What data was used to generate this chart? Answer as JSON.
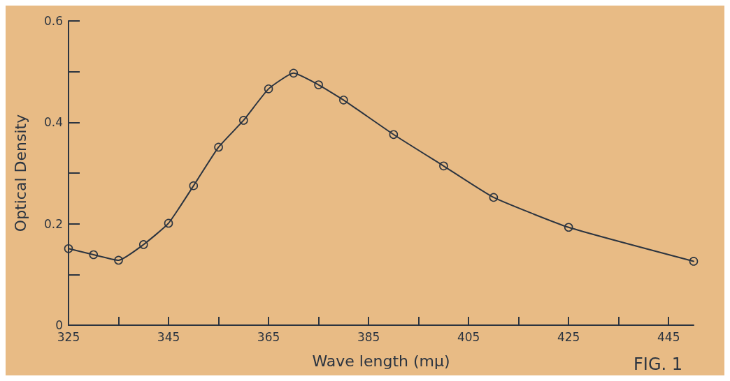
{
  "chart_data": {
    "type": "line",
    "xlabel": "Wave length (mμ)",
    "ylabel": "Optical Density",
    "annotations": [
      "FIG. 1"
    ],
    "x": [
      325,
      330,
      335,
      340,
      345,
      350,
      355,
      360,
      365,
      370,
      375,
      380,
      390,
      400,
      410,
      425,
      450
    ],
    "series": [
      {
        "color": "#2b3440",
        "values": [
          0.151,
          0.139,
          0.128,
          0.159,
          0.201,
          0.275,
          0.351,
          0.404,
          0.466,
          0.497,
          0.474,
          0.444,
          0.376,
          0.314,
          0.252,
          0.193,
          0.126
        ]
      }
    ],
    "xlim": [
      325,
      450
    ],
    "xticks": [
      325,
      {
        "value": 335,
        "label": null
      },
      345,
      {
        "value": 355,
        "label": null
      },
      365,
      {
        "value": 375,
        "label": null
      },
      385,
      {
        "value": 395,
        "label": null
      },
      405,
      {
        "value": 415,
        "label": null
      },
      425,
      {
        "value": 435,
        "label": null
      },
      445
    ],
    "ylim": [
      0,
      0.6
    ],
    "yticks": [
      0,
      {
        "value": 0.1,
        "label": null
      },
      0.2,
      {
        "value": 0.3,
        "label": null
      },
      0.4,
      {
        "value": 0.5,
        "label": null
      },
      0.6
    ],
    "grid": false,
    "marker": "circle",
    "line_style": "solid"
  }
}
